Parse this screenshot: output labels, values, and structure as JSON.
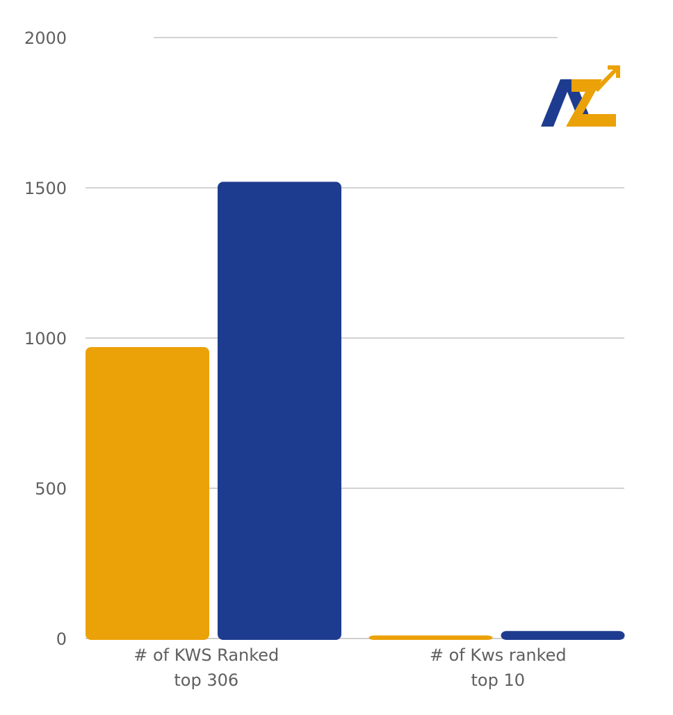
{
  "chart_data": {
    "type": "bar",
    "categories": [
      [
        "# of KWS Ranked",
        "top 306"
      ],
      [
        "# of Kws ranked",
        "top 10"
      ]
    ],
    "series": [
      {
        "name": "",
        "color": "#EBA108",
        "values": [
          970,
          10
        ]
      },
      {
        "name": "",
        "color": "#1E3C8F",
        "values": [
          1520,
          25
        ]
      }
    ],
    "yticks": [
      "0",
      "500",
      "1000",
      "1500",
      "2000"
    ],
    "ylim": [
      0,
      2000
    ],
    "grid": true,
    "title": "",
    "xlabel": "",
    "ylabel": ""
  },
  "logo": {
    "text": "AZ",
    "colors": {
      "a": "#1E3C8F",
      "z": "#EBA108"
    }
  },
  "colors": {
    "grid": "#c4c4c4",
    "axis_text": "#5f5f5f"
  }
}
